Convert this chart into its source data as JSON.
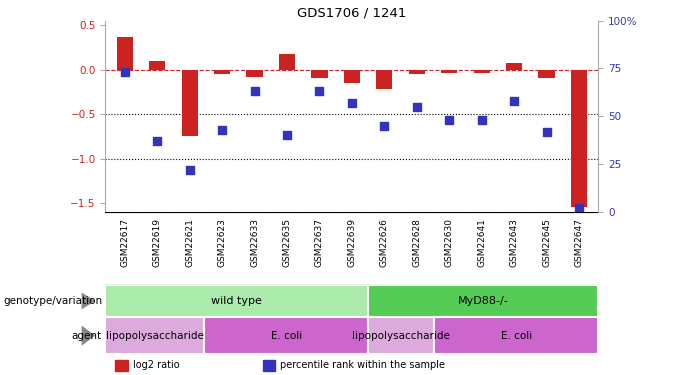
{
  "title": "GDS1706 / 1241",
  "samples": [
    "GSM22617",
    "GSM22619",
    "GSM22621",
    "GSM22623",
    "GSM22633",
    "GSM22635",
    "GSM22637",
    "GSM22639",
    "GSM22626",
    "GSM22628",
    "GSM22630",
    "GSM22641",
    "GSM22643",
    "GSM22645",
    "GSM22647"
  ],
  "log2_ratio": [
    0.37,
    0.1,
    -0.75,
    -0.05,
    -0.08,
    0.18,
    -0.1,
    -0.15,
    -0.22,
    -0.05,
    -0.04,
    -0.04,
    0.07,
    -0.09,
    -1.55
  ],
  "percentile_pct": [
    73,
    37,
    22,
    43,
    63,
    40,
    63,
    57,
    45,
    55,
    48,
    48,
    58,
    42,
    2
  ],
  "bar_color": "#cc2222",
  "dot_color": "#3333bb",
  "ref_line_color": "#cc2222",
  "dotted_line_color": "#000000",
  "ylim_left": [
    -1.6,
    0.55
  ],
  "ylim_right": [
    0,
    100
  ],
  "yticks_left": [
    -1.5,
    -1.0,
    -0.5,
    0.0,
    0.5
  ],
  "yticks_right": [
    0,
    25,
    50,
    75,
    100
  ],
  "genotype_groups": [
    {
      "label": "wild type",
      "start": 0,
      "end": 8,
      "color": "#aaeaaa"
    },
    {
      "label": "MyD88-/-",
      "start": 8,
      "end": 15,
      "color": "#55cc55"
    }
  ],
  "agent_groups": [
    {
      "label": "lipopolysaccharide",
      "start": 0,
      "end": 3,
      "color": "#ddaadd"
    },
    {
      "label": "E. coli",
      "start": 3,
      "end": 8,
      "color": "#cc66cc"
    },
    {
      "label": "lipopolysaccharide",
      "start": 8,
      "end": 10,
      "color": "#ddaadd"
    },
    {
      "label": "E. coli",
      "start": 10,
      "end": 15,
      "color": "#cc66cc"
    }
  ],
  "legend_items": [
    {
      "label": "log2 ratio",
      "color": "#cc2222"
    },
    {
      "label": "percentile rank within the sample",
      "color": "#3333bb"
    }
  ],
  "left_label_geno": "genotype/variation",
  "left_label_agent": "agent",
  "bar_width": 0.5,
  "dot_size": 40,
  "sample_bg_color": "#cccccc",
  "sample_grid_color": "#ffffff"
}
